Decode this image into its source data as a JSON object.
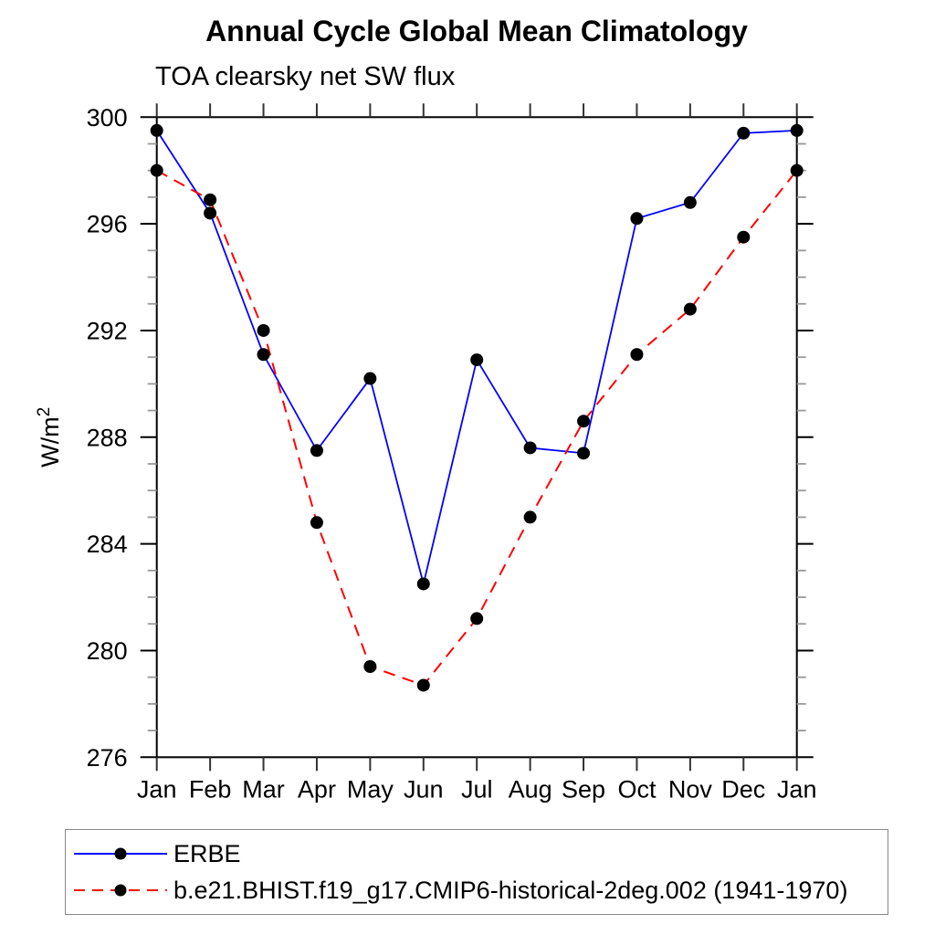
{
  "chart_data": {
    "type": "line",
    "title": "Annual Cycle Global Mean Climatology",
    "subtitle": "TOA clearsky net SW flux",
    "ylabel": "W/m²",
    "ylabel_main": "W/m",
    "ylabel_sup": "2",
    "xlabel": "",
    "categories": [
      "Jan",
      "Feb",
      "Mar",
      "Apr",
      "May",
      "Jun",
      "Jul",
      "Aug",
      "Sep",
      "Oct",
      "Nov",
      "Dec",
      "Jan"
    ],
    "ylim": [
      276,
      300
    ],
    "ytick_major": [
      276,
      280,
      284,
      288,
      292,
      296,
      300
    ],
    "ytick_minor_step": 1,
    "grid": false,
    "legend_position": "bottom-left-box",
    "axis_color": "#000000",
    "minor_tick_color": "#999999",
    "series": [
      {
        "name": "ERBE",
        "color": "#0000ff",
        "line_style": "solid",
        "marker": "filled-circle",
        "marker_color": "#000000",
        "values": [
          299.5,
          296.4,
          291.1,
          287.5,
          290.2,
          282.5,
          290.9,
          287.6,
          287.4,
          296.2,
          296.8,
          299.4,
          299.5
        ]
      },
      {
        "name": "b.e21.BHIST.f19_g17.CMIP6-historical-2deg.002 (1941-1970)",
        "color": "#ff0000",
        "line_style": "dashed",
        "marker": "filled-circle",
        "marker_color": "#000000",
        "values": [
          298.0,
          296.9,
          292.0,
          284.8,
          279.4,
          278.7,
          281.2,
          285.0,
          288.6,
          291.1,
          292.8,
          295.5,
          298.0
        ]
      }
    ]
  }
}
